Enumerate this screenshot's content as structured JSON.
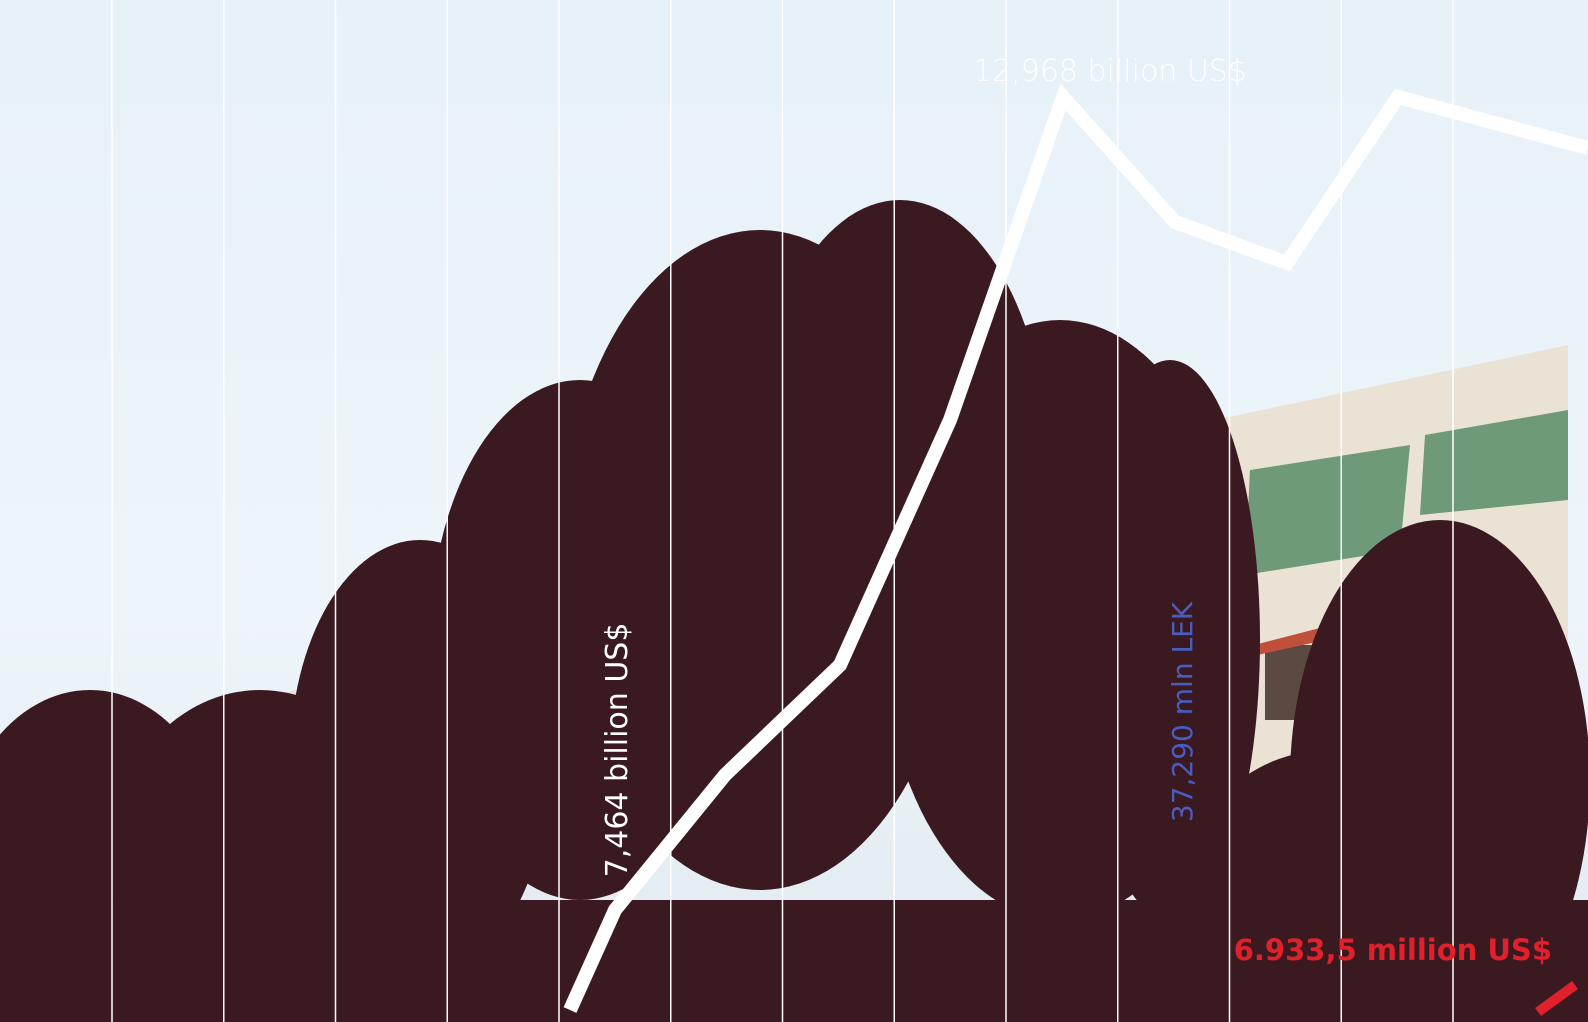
{
  "labels": [
    {
      "text": "12,968 billion US$"
    },
    {
      "text": "7,464 billion US$"
    },
    {
      "text": "37,290 mln LEK"
    },
    {
      "text": "6.933,5 million US$"
    }
  ]
}
